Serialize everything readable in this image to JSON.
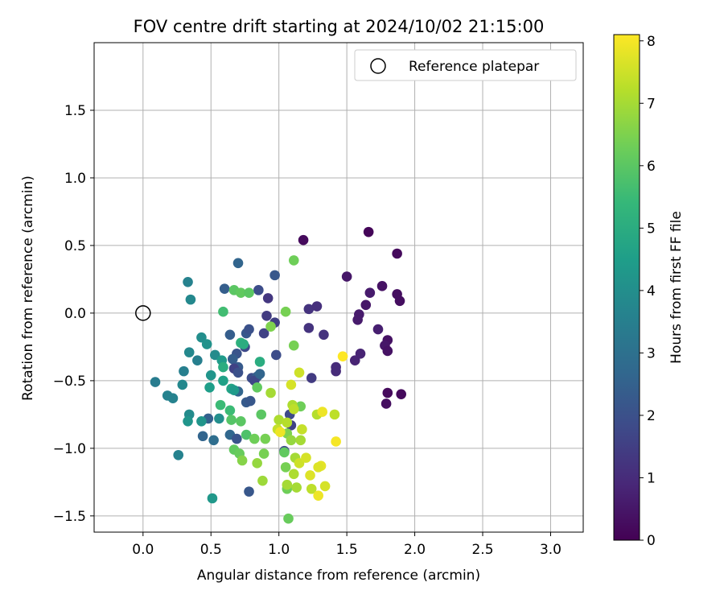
{
  "chart_data": {
    "type": "scatter",
    "title": "FOV centre drift starting at 2024/10/02 21:15:00",
    "xlabel": "Angular distance from reference (arcmin)",
    "ylabel": "Rotation from reference (arcmin)",
    "xlim": [
      -0.36,
      3.24
    ],
    "ylim": [
      -1.62,
      2.0
    ],
    "xticks": [
      0.0,
      0.5,
      1.0,
      1.5,
      2.0,
      2.5,
      3.0
    ],
    "xtick_labels": [
      "0.0",
      "0.5",
      "1.0",
      "1.5",
      "2.0",
      "2.5",
      "3.0"
    ],
    "yticks": [
      -1.5,
      -1.0,
      -0.5,
      0.0,
      0.5,
      1.0,
      1.5
    ],
    "ytick_labels": [
      "−1.5",
      "−1.0",
      "−0.5",
      "0.0",
      "0.5",
      "1.0",
      "1.5"
    ],
    "grid": true,
    "legend": {
      "placement": "top-right",
      "label": "Reference platepar",
      "marker": "open-circle"
    },
    "reference_point": {
      "x": 0.0,
      "y": 0.0
    },
    "colorbar": {
      "label": "Hours from first FF file",
      "colormap": "viridis",
      "range": [
        0,
        8.1
      ],
      "ticks": [
        0,
        1,
        2,
        3,
        4,
        5,
        6,
        7,
        8
      ],
      "tick_labels": [
        "0",
        "1",
        "2",
        "3",
        "4",
        "5",
        "6",
        "7",
        "8"
      ]
    },
    "points": [
      {
        "x": 1.18,
        "y": 0.54,
        "h": 0.2
      },
      {
        "x": 1.66,
        "y": 0.6,
        "h": 0.1
      },
      {
        "x": 1.87,
        "y": 0.44,
        "h": 0.2
      },
      {
        "x": 1.5,
        "y": 0.27,
        "h": 0.5
      },
      {
        "x": 1.67,
        "y": 0.15,
        "h": 0.6
      },
      {
        "x": 1.76,
        "y": 0.2,
        "h": 0.4
      },
      {
        "x": 1.87,
        "y": 0.14,
        "h": 0.3
      },
      {
        "x": 1.89,
        "y": 0.09,
        "h": 0.3
      },
      {
        "x": 1.64,
        "y": 0.06,
        "h": 0.5
      },
      {
        "x": 1.59,
        "y": -0.01,
        "h": 0.6
      },
      {
        "x": 1.58,
        "y": -0.05,
        "h": 0.6
      },
      {
        "x": 1.73,
        "y": -0.12,
        "h": 0.7
      },
      {
        "x": 1.8,
        "y": -0.2,
        "h": 0.4
      },
      {
        "x": 1.78,
        "y": -0.24,
        "h": 0.5
      },
      {
        "x": 1.8,
        "y": -0.28,
        "h": 0.4
      },
      {
        "x": 1.6,
        "y": -0.3,
        "h": 0.8
      },
      {
        "x": 1.56,
        "y": -0.35,
        "h": 0.8
      },
      {
        "x": 1.42,
        "y": -0.4,
        "h": 1.0
      },
      {
        "x": 1.42,
        "y": -0.43,
        "h": 1.0
      },
      {
        "x": 1.8,
        "y": -0.59,
        "h": 0.2
      },
      {
        "x": 1.9,
        "y": -0.6,
        "h": 0.2
      },
      {
        "x": 1.79,
        "y": -0.67,
        "h": 0.3
      },
      {
        "x": 1.22,
        "y": 0.03,
        "h": 1.2
      },
      {
        "x": 1.28,
        "y": 0.05,
        "h": 1.1
      },
      {
        "x": 1.22,
        "y": -0.11,
        "h": 1.2
      },
      {
        "x": 1.33,
        "y": -0.16,
        "h": 1.2
      },
      {
        "x": 1.24,
        "y": -0.48,
        "h": 1.4
      },
      {
        "x": 0.97,
        "y": -0.07,
        "h": 1.5
      },
      {
        "x": 0.92,
        "y": 0.11,
        "h": 1.3
      },
      {
        "x": 0.91,
        "y": -0.02,
        "h": 1.4
      },
      {
        "x": 0.89,
        "y": -0.15,
        "h": 1.6
      },
      {
        "x": 0.98,
        "y": -0.31,
        "h": 1.9
      },
      {
        "x": 0.97,
        "y": 0.28,
        "h": 2.2
      },
      {
        "x": 0.85,
        "y": 0.17,
        "h": 1.9
      },
      {
        "x": 0.6,
        "y": 0.18,
        "h": 2.4
      },
      {
        "x": 0.7,
        "y": 0.37,
        "h": 2.6
      },
      {
        "x": 0.64,
        "y": -0.16,
        "h": 2.4
      },
      {
        "x": 0.76,
        "y": -0.15,
        "h": 2.2
      },
      {
        "x": 0.78,
        "y": -0.12,
        "h": 2.0
      },
      {
        "x": 0.75,
        "y": -0.25,
        "h": 1.8
      },
      {
        "x": 0.69,
        "y": -0.3,
        "h": 2.1
      },
      {
        "x": 0.66,
        "y": -0.34,
        "h": 2.4
      },
      {
        "x": 0.7,
        "y": -0.4,
        "h": 2.3
      },
      {
        "x": 0.67,
        "y": -0.41,
        "h": 1.6
      },
      {
        "x": 0.7,
        "y": -0.44,
        "h": 2.0
      },
      {
        "x": 0.8,
        "y": -0.48,
        "h": 1.9
      },
      {
        "x": 0.84,
        "y": -0.47,
        "h": 2.4
      },
      {
        "x": 0.82,
        "y": -0.5,
        "h": 1.7
      },
      {
        "x": 0.86,
        "y": -0.45,
        "h": 2.6
      },
      {
        "x": 0.7,
        "y": -0.58,
        "h": 2.6
      },
      {
        "x": 0.76,
        "y": -0.66,
        "h": 2.3
      },
      {
        "x": 0.79,
        "y": -0.65,
        "h": 2.2
      },
      {
        "x": 0.64,
        "y": -0.9,
        "h": 2.7
      },
      {
        "x": 0.69,
        "y": -0.93,
        "h": 2.1
      },
      {
        "x": 0.78,
        "y": -1.32,
        "h": 2.2
      },
      {
        "x": 0.44,
        "y": -0.91,
        "h": 2.6
      },
      {
        "x": 0.52,
        "y": -0.94,
        "h": 2.9
      },
      {
        "x": 0.48,
        "y": -0.78,
        "h": 2.5
      },
      {
        "x": 1.04,
        "y": -1.02,
        "h": 1.9
      },
      {
        "x": 1.08,
        "y": -0.75,
        "h": 1.8
      },
      {
        "x": 1.09,
        "y": -0.83,
        "h": 1.6
      },
      {
        "x": 0.33,
        "y": 0.23,
        "h": 3.6
      },
      {
        "x": 0.35,
        "y": 0.1,
        "h": 3.8
      },
      {
        "x": 0.09,
        "y": -0.51,
        "h": 3.4
      },
      {
        "x": 0.18,
        "y": -0.61,
        "h": 3.6
      },
      {
        "x": 0.22,
        "y": -0.63,
        "h": 3.6
      },
      {
        "x": 0.29,
        "y": -0.53,
        "h": 3.8
      },
      {
        "x": 0.3,
        "y": -0.43,
        "h": 3.5
      },
      {
        "x": 0.34,
        "y": -0.29,
        "h": 3.8
      },
      {
        "x": 0.4,
        "y": -0.35,
        "h": 3.5
      },
      {
        "x": 0.43,
        "y": -0.18,
        "h": 4.0
      },
      {
        "x": 0.47,
        "y": -0.23,
        "h": 4.1
      },
      {
        "x": 0.53,
        "y": -0.31,
        "h": 3.9
      },
      {
        "x": 0.58,
        "y": -0.35,
        "h": 4.4
      },
      {
        "x": 0.59,
        "y": -0.4,
        "h": 5.0
      },
      {
        "x": 0.5,
        "y": -0.46,
        "h": 4.2
      },
      {
        "x": 0.49,
        "y": -0.55,
        "h": 4.5
      },
      {
        "x": 0.59,
        "y": -0.5,
        "h": 4.6
      },
      {
        "x": 0.34,
        "y": -0.75,
        "h": 3.9
      },
      {
        "x": 0.33,
        "y": -0.8,
        "h": 4.2
      },
      {
        "x": 0.43,
        "y": -0.8,
        "h": 4.2
      },
      {
        "x": 0.56,
        "y": -0.78,
        "h": 4.0
      },
      {
        "x": 0.26,
        "y": -1.05,
        "h": 3.6
      },
      {
        "x": 0.51,
        "y": -1.37,
        "h": 4.3
      },
      {
        "x": 0.65,
        "y": -0.56,
        "h": 4.7
      },
      {
        "x": 0.67,
        "y": -0.57,
        "h": 4.4
      },
      {
        "x": 0.72,
        "y": -0.22,
        "h": 5.2
      },
      {
        "x": 0.74,
        "y": -0.23,
        "h": 5.0
      },
      {
        "x": 0.86,
        "y": -0.36,
        "h": 5.0
      },
      {
        "x": 0.57,
        "y": -0.68,
        "h": 5.5
      },
      {
        "x": 0.64,
        "y": -0.72,
        "h": 5.5
      },
      {
        "x": 0.59,
        "y": 0.01,
        "h": 5.6
      },
      {
        "x": 0.67,
        "y": 0.17,
        "h": 6.0
      },
      {
        "x": 0.72,
        "y": 0.15,
        "h": 6.1
      },
      {
        "x": 0.78,
        "y": 0.15,
        "h": 6.0
      },
      {
        "x": 1.11,
        "y": 0.39,
        "h": 6.3
      },
      {
        "x": 1.05,
        "y": 0.01,
        "h": 6.4
      },
      {
        "x": 0.94,
        "y": -0.1,
        "h": 6.5
      },
      {
        "x": 1.11,
        "y": -0.24,
        "h": 6.4
      },
      {
        "x": 0.65,
        "y": -0.79,
        "h": 5.9
      },
      {
        "x": 0.72,
        "y": -0.8,
        "h": 6.0
      },
      {
        "x": 0.84,
        "y": -0.55,
        "h": 6.1
      },
      {
        "x": 0.87,
        "y": -0.75,
        "h": 6.0
      },
      {
        "x": 0.76,
        "y": -0.9,
        "h": 5.8
      },
      {
        "x": 0.82,
        "y": -0.93,
        "h": 6.3
      },
      {
        "x": 0.9,
        "y": -0.93,
        "h": 6.4
      },
      {
        "x": 0.67,
        "y": -1.01,
        "h": 6.1
      },
      {
        "x": 0.71,
        "y": -1.04,
        "h": 6.2
      },
      {
        "x": 0.73,
        "y": -1.09,
        "h": 6.6
      },
      {
        "x": 0.84,
        "y": -1.11,
        "h": 6.8
      },
      {
        "x": 0.89,
        "y": -1.04,
        "h": 6.4
      },
      {
        "x": 0.88,
        "y": -1.24,
        "h": 6.9
      },
      {
        "x": 1.04,
        "y": -1.03,
        "h": 6.1
      },
      {
        "x": 1.06,
        "y": -0.89,
        "h": 6.5
      },
      {
        "x": 1.05,
        "y": -1.14,
        "h": 6.4
      },
      {
        "x": 1.06,
        "y": -1.3,
        "h": 6.3
      },
      {
        "x": 1.07,
        "y": -1.52,
        "h": 6.2
      },
      {
        "x": 1.16,
        "y": -0.69,
        "h": 6.3
      },
      {
        "x": 1.09,
        "y": -0.94,
        "h": 6.8
      },
      {
        "x": 1.12,
        "y": -1.07,
        "h": 7.0
      },
      {
        "x": 1.16,
        "y": -0.94,
        "h": 7.0
      },
      {
        "x": 1.11,
        "y": -1.19,
        "h": 7.1
      },
      {
        "x": 1.06,
        "y": -1.27,
        "h": 7.0
      },
      {
        "x": 1.13,
        "y": -1.29,
        "h": 7.0
      },
      {
        "x": 1.15,
        "y": -1.11,
        "h": 7.5
      },
      {
        "x": 0.94,
        "y": -0.59,
        "h": 7.0
      },
      {
        "x": 1.0,
        "y": -0.79,
        "h": 7.1
      },
      {
        "x": 0.99,
        "y": -0.86,
        "h": 7.4
      },
      {
        "x": 1.06,
        "y": -0.81,
        "h": 7.2
      },
      {
        "x": 1.1,
        "y": -0.68,
        "h": 7.1
      },
      {
        "x": 1.11,
        "y": -0.71,
        "h": 7.3
      },
      {
        "x": 1.17,
        "y": -0.86,
        "h": 7.4
      },
      {
        "x": 1.15,
        "y": -0.44,
        "h": 7.5
      },
      {
        "x": 1.09,
        "y": -0.53,
        "h": 7.6
      },
      {
        "x": 1.2,
        "y": -1.07,
        "h": 7.6
      },
      {
        "x": 1.23,
        "y": -1.2,
        "h": 7.7
      },
      {
        "x": 1.24,
        "y": -1.3,
        "h": 7.3
      },
      {
        "x": 1.28,
        "y": -0.75,
        "h": 7.2
      },
      {
        "x": 1.41,
        "y": -0.75,
        "h": 7.3
      },
      {
        "x": 1.31,
        "y": -1.13,
        "h": 7.8
      },
      {
        "x": 1.29,
        "y": -1.14,
        "h": 7.7
      },
      {
        "x": 1.34,
        "y": -1.28,
        "h": 7.6
      },
      {
        "x": 1.29,
        "y": -1.35,
        "h": 7.9
      },
      {
        "x": 1.01,
        "y": -0.88,
        "h": 7.9
      },
      {
        "x": 1.32,
        "y": -0.73,
        "h": 7.9
      },
      {
        "x": 1.42,
        "y": -0.95,
        "h": 8.0
      },
      {
        "x": 1.47,
        "y": -0.32,
        "h": 8.1
      }
    ]
  }
}
